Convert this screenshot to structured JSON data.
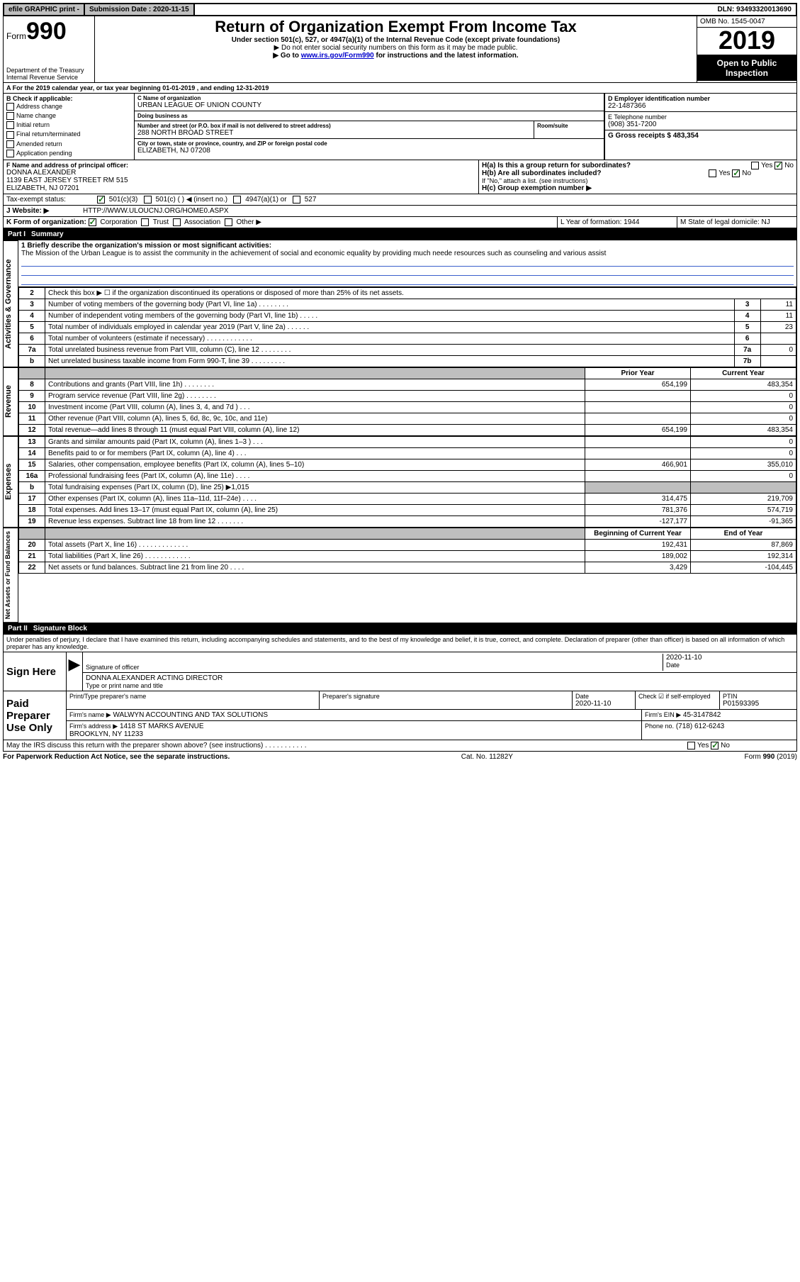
{
  "topbar": {
    "efile": "efile GRAPHIC print -",
    "submission_label": "Submission Date : 2020-11-15",
    "dln": "DLN: 93493320013690"
  },
  "header": {
    "form_prefix": "Form",
    "form_no": "990",
    "dept": "Department of the Treasury\nInternal Revenue Service",
    "title": "Return of Organization Exempt From Income Tax",
    "subtitle": "Under section 501(c), 527, or 4947(a)(1) of the Internal Revenue Code (except private foundations)",
    "note1": "▶ Do not enter social security numbers on this form as it may be made public.",
    "note2_pre": "▶ Go to ",
    "note2_link": "www.irs.gov/Form990",
    "note2_post": " for instructions and the latest information.",
    "omb": "OMB No. 1545-0047",
    "year": "2019",
    "inspect": "Open to Public Inspection"
  },
  "lineA": "A For the 2019 calendar year, or tax year beginning 01-01-2019   , and ending 12-31-2019",
  "sectionB": {
    "label": "B Check if applicable:",
    "items": [
      "Address change",
      "Name change",
      "Initial return",
      "Final return/terminated",
      "Amended return",
      "Application pending"
    ]
  },
  "org": {
    "name_label": "C Name of organization",
    "name": "URBAN LEAGUE OF UNION COUNTY",
    "dba_label": "Doing business as",
    "dba": "",
    "street_label": "Number and street (or P.O. box if mail is not delivered to street address)",
    "street": "288 NORTH BROAD STREET",
    "room_label": "Room/suite",
    "city_label": "City or town, state or province, country, and ZIP or foreign postal code",
    "city": "ELIZABETH, NJ  07208"
  },
  "right": {
    "ein_label": "D Employer identification number",
    "ein": "22-1487366",
    "phone_label": "E Telephone number",
    "phone": "(908) 351-7200",
    "gross_label": "G Gross receipts $ 483,354"
  },
  "officer": {
    "label": "F  Name and address of principal officer:",
    "name": "DONNA ALEXANDER",
    "addr1": "1139 EAST JERSEY STREET RM 515",
    "addr2": "ELIZABETH, NJ  07201"
  },
  "H": {
    "a": "H(a)  Is this a group return for subordinates?",
    "b": "H(b)  Are all subordinates included?",
    "b_note": "If \"No,\" attach a list. (see instructions)",
    "c": "H(c)  Group exemption number ▶",
    "yes": "Yes",
    "no": "No"
  },
  "tax_status": {
    "label": "Tax-exempt status:",
    "opt1": "501(c)(3)",
    "opt2": "501(c) (  ) ◀ (insert no.)",
    "opt3": "4947(a)(1) or",
    "opt4": "527"
  },
  "website": {
    "label": "J   Website: ▶",
    "value": "HTTP://WWW.ULOUCNJ.ORG/HOME0.ASPX"
  },
  "K": {
    "label": "K Form of organization:",
    "opts": [
      "Corporation",
      "Trust",
      "Association",
      "Other ▶"
    ],
    "L_label": "L Year of formation: 1944",
    "M_label": "M State of legal domicile: NJ"
  },
  "part1": {
    "no": "Part I",
    "title": "Summary"
  },
  "mission": {
    "label": "1  Briefly describe the organization's mission or most significant activities:",
    "text": "The Mission of the Urban League is to assist the community in the achievement of social and economic equality by providing much neede resources such as counseling and various assist"
  },
  "gov_lines": {
    "l2": "Check this box ▶ ☐  if the organization discontinued its operations or disposed of more than 25% of its net assets.",
    "l3": "Number of voting members of the governing body (Part VI, line 1a)   .    .    .    .    .    .    .    .",
    "l4": "Number of independent voting members of the governing body (Part VI, line 1b)   .    .    .    .    .",
    "l5": "Total number of individuals employed in calendar year 2019 (Part V, line 2a)   .    .    .    .    .    .",
    "l6": "Total number of volunteers (estimate if necessary)    .    .    .    .    .    .    .    .    .    .    .    .",
    "l7a": "Total unrelated business revenue from Part VIII, column (C), line 12   .    .    .    .    .    .    .    .",
    "l7b": "Net unrelated business taxable income from Form 990-T, line 39    .    .    .    .    .    .    .    .    ."
  },
  "gov_vals": {
    "3": "11",
    "4": "11",
    "5": "23",
    "6": "",
    "7a": "0",
    "7b": ""
  },
  "col_heads": {
    "prior": "Prior Year",
    "current": "Current Year",
    "boy": "Beginning of Current Year",
    "eoy": "End of Year"
  },
  "rev": [
    {
      "n": "8",
      "d": "Contributions and grants (Part VIII, line 1h)    .    .    .    .    .    .    .    .",
      "p": "654,199",
      "c": "483,354"
    },
    {
      "n": "9",
      "d": "Program service revenue (Part VIII, line 2g)    .    .    .    .    .    .    .    .",
      "p": "",
      "c": "0"
    },
    {
      "n": "10",
      "d": "Investment income (Part VIII, column (A), lines 3, 4, and 7d )    .    .    .",
      "p": "",
      "c": "0"
    },
    {
      "n": "11",
      "d": "Other revenue (Part VIII, column (A), lines 5, 6d, 8c, 9c, 10c, and 11e)",
      "p": "",
      "c": "0"
    },
    {
      "n": "12",
      "d": "Total revenue—add lines 8 through 11 (must equal Part VIII, column (A), line 12)",
      "p": "654,199",
      "c": "483,354"
    }
  ],
  "exp": [
    {
      "n": "13",
      "d": "Grants and similar amounts paid (Part IX, column (A), lines 1–3 )   .    .    .",
      "p": "",
      "c": "0"
    },
    {
      "n": "14",
      "d": "Benefits paid to or for members (Part IX, column (A), line 4)    .    .    .",
      "p": "",
      "c": "0"
    },
    {
      "n": "15",
      "d": "Salaries, other compensation, employee benefits (Part IX, column (A), lines 5–10)",
      "p": "466,901",
      "c": "355,010"
    },
    {
      "n": "16a",
      "d": "Professional fundraising fees (Part IX, column (A), line 11e)    .    .    .    .",
      "p": "",
      "c": "0"
    },
    {
      "n": "b",
      "d": "Total fundraising expenses (Part IX, column (D), line 25) ▶1,015",
      "p": "SHADE",
      "c": "SHADE"
    },
    {
      "n": "17",
      "d": "Other expenses (Part IX, column (A), lines 11a–11d, 11f–24e)    .    .    .    .",
      "p": "314,475",
      "c": "219,709"
    },
    {
      "n": "18",
      "d": "Total expenses. Add lines 13–17 (must equal Part IX, column (A), line 25)",
      "p": "781,376",
      "c": "574,719"
    },
    {
      "n": "19",
      "d": "Revenue less expenses. Subtract line 18 from line 12   .    .    .    .    .    .    .",
      "p": "-127,177",
      "c": "-91,365"
    }
  ],
  "net": [
    {
      "n": "20",
      "d": "Total assets (Part X, line 16)   .    .    .    .    .    .    .    .    .    .    .    .    .",
      "p": "192,431",
      "c": "87,869"
    },
    {
      "n": "21",
      "d": "Total liabilities (Part X, line 26)   .    .    .    .    .    .    .    .    .    .    .    .",
      "p": "189,002",
      "c": "192,314"
    },
    {
      "n": "22",
      "d": "Net assets or fund balances. Subtract line 21 from line 20   .    .    .    .",
      "p": "3,429",
      "c": "-104,445"
    }
  ],
  "vlabels": {
    "gov": "Activities & Governance",
    "rev": "Revenue",
    "exp": "Expenses",
    "net": "Net Assets or Fund Balances"
  },
  "part2": {
    "no": "Part II",
    "title": "Signature Block"
  },
  "sig": {
    "penalty": "Under penalties of perjury, I declare that I have examined this return, including accompanying schedules and statements, and to the best of my knowledge and belief, it is true, correct, and complete. Declaration of preparer (other than officer) is based on all information of which preparer has any knowledge.",
    "sign_here": "Sign Here",
    "sig_officer": "Signature of officer",
    "date_label": "Date",
    "date": "2020-11-10",
    "name_title": "DONNA ALEXANDER  ACTING DIRECTOR",
    "type_label": "Type or print name and title",
    "paid": "Paid Preparer Use Only",
    "prep_name_label": "Print/Type preparer's name",
    "prep_sig_label": "Preparer's signature",
    "prep_date": "2020-11-10",
    "check_self": "Check ☑ if self-employed",
    "ptin_label": "PTIN",
    "ptin": "P01593395",
    "firm_name_label": "Firm's name    ▶",
    "firm_name": "WALWYN ACCOUNTING AND TAX SOLUTIONS",
    "firm_ein_label": "Firm's EIN ▶",
    "firm_ein": "45-3147842",
    "firm_addr_label": "Firm's address ▶",
    "firm_addr1": "1418 ST MARKS AVENUE",
    "firm_addr2": "BROOKLYN, NY  11233",
    "firm_phone_label": "Phone no.",
    "firm_phone": "(718) 612-6243",
    "discuss": "May the IRS discuss this return with the preparer shown above? (see instructions)    .    .    .    .    .    .    .    .    .    .    ."
  },
  "footer": {
    "left": "For Paperwork Reduction Act Notice, see the separate instructions.",
    "mid": "Cat. No. 11282Y",
    "right": "Form 990 (2019)"
  }
}
